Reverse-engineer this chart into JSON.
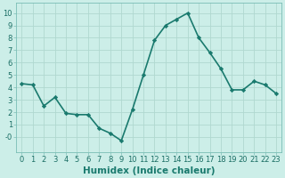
{
  "x": [
    0,
    1,
    2,
    3,
    4,
    5,
    6,
    7,
    8,
    9,
    10,
    11,
    12,
    13,
    14,
    15,
    16,
    17,
    18,
    19,
    20,
    21,
    22,
    23
  ],
  "y": [
    4.3,
    4.2,
    2.5,
    3.2,
    1.9,
    1.8,
    1.8,
    0.7,
    0.3,
    -0.3,
    2.2,
    5.0,
    7.8,
    9.0,
    9.5,
    10.0,
    8.0,
    6.8,
    5.5,
    3.8,
    3.8,
    4.5,
    4.2,
    3.5
  ],
  "line_color": "#1a7a6e",
  "marker": "D",
  "marker_size": 2.2,
  "bg_color": "#cceee8",
  "grid_color": "#b0d8d0",
  "xlabel": "Humidex (Indice chaleur)",
  "xlabel_fontsize": 7.5,
  "xlim": [
    -0.5,
    23.5
  ],
  "ylim": [
    -1.2,
    10.8
  ],
  "yticks": [
    0,
    1,
    2,
    3,
    4,
    5,
    6,
    7,
    8,
    9,
    10
  ],
  "ytick_labels": [
    "-0",
    "1",
    "2",
    "3",
    "4",
    "5",
    "6",
    "7",
    "8",
    "9",
    "10"
  ],
  "xtick_labels": [
    "0",
    "1",
    "2",
    "3",
    "4",
    "5",
    "6",
    "7",
    "8",
    "9",
    "10",
    "11",
    "12",
    "13",
    "14",
    "15",
    "16",
    "17",
    "18",
    "19",
    "20",
    "21",
    "22",
    "23"
  ],
  "tick_fontsize": 6.0,
  "line_width": 1.2
}
